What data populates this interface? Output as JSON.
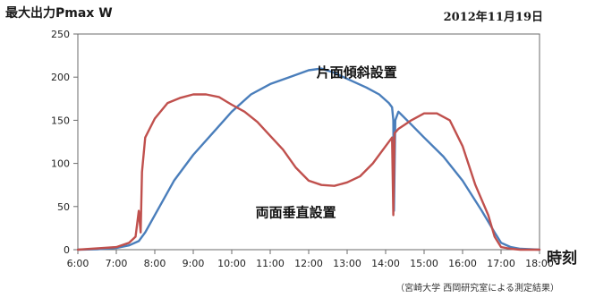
{
  "header": {
    "ylabel": "最大出力Pmax W",
    "date": "2012年11月19日",
    "xunit": "時刻",
    "source": "（宮崎大学 西岡研究室による測定結果）"
  },
  "chart_data": {
    "type": "line",
    "ylabel": "最大出力Pmax W",
    "xlabel": "時刻",
    "xlim": [
      "6:00",
      "18:00"
    ],
    "ylim": [
      0,
      250
    ],
    "x_ticks": [
      "6:00",
      "7:00",
      "8:00",
      "9:00",
      "10:00",
      "11:00",
      "12:00",
      "13:00",
      "14:00",
      "15:00",
      "16:00",
      "17:00",
      "18:00"
    ],
    "y_ticks": [
      0,
      50,
      100,
      150,
      200,
      250
    ],
    "grid": false,
    "series": [
      {
        "name": "片面傾斜設置",
        "color": "#4a7ebb",
        "points": [
          [
            "6:00",
            0
          ],
          [
            "6:30",
            0.5
          ],
          [
            "7:00",
            2
          ],
          [
            "7:20",
            5
          ],
          [
            "7:35",
            10
          ],
          [
            "7:40",
            15
          ],
          [
            "7:45",
            20
          ],
          [
            "8:00",
            40
          ],
          [
            "8:30",
            80
          ],
          [
            "9:00",
            110
          ],
          [
            "9:30",
            135
          ],
          [
            "10:00",
            160
          ],
          [
            "10:30",
            180
          ],
          [
            "11:00",
            192
          ],
          [
            "11:30",
            200
          ],
          [
            "12:00",
            208
          ],
          [
            "12:20",
            210
          ],
          [
            "12:40",
            205
          ],
          [
            "13:00",
            198
          ],
          [
            "13:30",
            188
          ],
          [
            "13:50",
            180
          ],
          [
            "14:05",
            170
          ],
          [
            "14:10",
            165
          ],
          [
            "14:12",
            150
          ],
          [
            "14:13",
            45
          ],
          [
            "14:15",
            150
          ],
          [
            "14:20",
            160
          ],
          [
            "14:40",
            145
          ],
          [
            "15:00",
            130
          ],
          [
            "15:30",
            108
          ],
          [
            "16:00",
            80
          ],
          [
            "16:30",
            45
          ],
          [
            "16:50",
            20
          ],
          [
            "17:00",
            8
          ],
          [
            "17:15",
            3
          ],
          [
            "17:30",
            1
          ],
          [
            "18:00",
            0
          ]
        ]
      },
      {
        "name": "両面垂直設置",
        "color": "#c0504d",
        "points": [
          [
            "6:00",
            0
          ],
          [
            "7:00",
            3
          ],
          [
            "7:20",
            8
          ],
          [
            "7:30",
            15
          ],
          [
            "7:35",
            45
          ],
          [
            "7:38",
            20
          ],
          [
            "7:40",
            90
          ],
          [
            "7:45",
            130
          ],
          [
            "8:00",
            152
          ],
          [
            "8:20",
            170
          ],
          [
            "8:40",
            176
          ],
          [
            "9:00",
            180
          ],
          [
            "9:20",
            180
          ],
          [
            "9:40",
            177
          ],
          [
            "10:00",
            168
          ],
          [
            "10:20",
            160
          ],
          [
            "10:40",
            148
          ],
          [
            "11:00",
            132
          ],
          [
            "11:20",
            116
          ],
          [
            "11:40",
            95
          ],
          [
            "12:00",
            80
          ],
          [
            "12:20",
            75
          ],
          [
            "12:40",
            74
          ],
          [
            "13:00",
            78
          ],
          [
            "13:20",
            85
          ],
          [
            "13:40",
            100
          ],
          [
            "14:00",
            120
          ],
          [
            "14:10",
            130
          ],
          [
            "14:12",
            40
          ],
          [
            "14:14",
            135
          ],
          [
            "14:20",
            140
          ],
          [
            "14:30",
            145
          ],
          [
            "14:40",
            150
          ],
          [
            "15:00",
            158
          ],
          [
            "15:20",
            158
          ],
          [
            "15:40",
            150
          ],
          [
            "16:00",
            120
          ],
          [
            "16:20",
            75
          ],
          [
            "16:40",
            40
          ],
          [
            "16:50",
            15
          ],
          [
            "17:00",
            3
          ],
          [
            "17:15",
            1
          ],
          [
            "17:30",
            0
          ],
          [
            "18:00",
            0
          ]
        ]
      }
    ],
    "annotations": [
      {
        "text": "片面傾斜設置",
        "x": "13:15",
        "y": 200
      },
      {
        "text": "両面垂直設置",
        "x": "11:40",
        "y": 38
      }
    ]
  }
}
